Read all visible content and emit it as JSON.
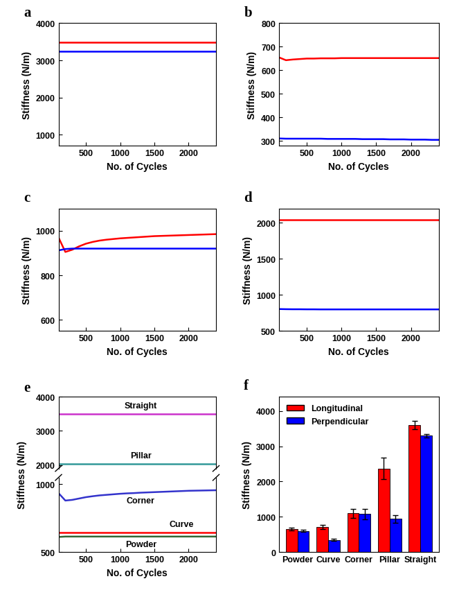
{
  "chart_data": [
    {
      "type": "line",
      "title": "a",
      "xlabel": "No. of Cycles",
      "ylabel": "Stiffness (N/m)",
      "x": [
        100,
        200,
        300,
        400,
        500,
        600,
        700,
        800,
        900,
        1000,
        1100,
        1200,
        1300,
        1400,
        1500,
        1600,
        1700,
        1800,
        1900,
        2000,
        2100,
        2200,
        2300,
        2400
      ],
      "xlim": [
        100,
        2400
      ],
      "xticks": [
        500,
        1000,
        1500,
        2000
      ],
      "ylim": [
        700,
        4000
      ],
      "yticks": [
        1000,
        2000,
        3000,
        4000
      ],
      "series": [
        {
          "color": "#ff0000",
          "values": [
            3480,
            3480,
            3480,
            3480,
            3480,
            3480,
            3480,
            3480,
            3480,
            3480,
            3480,
            3480,
            3480,
            3480,
            3480,
            3480,
            3480,
            3480,
            3480,
            3480,
            3480,
            3480,
            3480,
            3480
          ]
        },
        {
          "color": "#0000ff",
          "values": [
            3250,
            3250,
            3250,
            3250,
            3250,
            3250,
            3250,
            3250,
            3250,
            3250,
            3250,
            3250,
            3250,
            3250,
            3250,
            3250,
            3250,
            3250,
            3250,
            3250,
            3250,
            3250,
            3250,
            3250
          ]
        }
      ]
    },
    {
      "type": "line",
      "title": "b",
      "xlabel": "No. of Cycles",
      "ylabel": "Stiffness (N/m)",
      "x": [
        100,
        200,
        300,
        400,
        500,
        600,
        700,
        800,
        900,
        1000,
        1100,
        1200,
        1300,
        1400,
        1500,
        1600,
        1700,
        1800,
        1900,
        2000,
        2100,
        2200,
        2300,
        2400
      ],
      "xlim": [
        100,
        2400
      ],
      "xticks": [
        500,
        1000,
        1500,
        2000
      ],
      "ylim": [
        280,
        800
      ],
      "yticks": [
        300,
        400,
        500,
        600,
        700,
        800
      ],
      "series": [
        {
          "color": "#ff0000",
          "values": [
            655,
            643,
            646,
            648,
            650,
            650,
            651,
            651,
            651,
            652,
            652,
            652,
            652,
            652,
            652,
            652,
            652,
            652,
            652,
            652,
            652,
            652,
            652,
            652
          ]
        },
        {
          "color": "#0000ff",
          "values": [
            311,
            310,
            310,
            310,
            310,
            310,
            310,
            309,
            309,
            309,
            309,
            309,
            308,
            308,
            308,
            308,
            307,
            307,
            307,
            306,
            306,
            306,
            305,
            305
          ]
        }
      ]
    },
    {
      "type": "line",
      "title": "c",
      "xlabel": "No. of Cycles",
      "ylabel": "Stiffness (N/m)",
      "x": [
        100,
        200,
        300,
        400,
        500,
        600,
        700,
        800,
        900,
        1000,
        1100,
        1200,
        1300,
        1400,
        1500,
        1600,
        1700,
        1800,
        1900,
        2000,
        2100,
        2200,
        2300,
        2400
      ],
      "xlim": [
        100,
        2400
      ],
      "xticks": [
        500,
        1000,
        1500,
        2000
      ],
      "ylim": [
        550,
        1100
      ],
      "yticks": [
        600,
        800,
        1000
      ],
      "series": [
        {
          "color": "#ff0000",
          "values": [
            970,
            905,
            915,
            930,
            942,
            950,
            956,
            960,
            963,
            966,
            968,
            970,
            972,
            974,
            976,
            977,
            978,
            979,
            980,
            981,
            982,
            983,
            984,
            985
          ]
        },
        {
          "color": "#0000ff",
          "values": [
            912,
            918,
            920,
            920,
            920,
            920,
            920,
            920,
            920,
            920,
            920,
            920,
            920,
            920,
            920,
            920,
            920,
            920,
            920,
            920,
            920,
            920,
            920,
            920
          ]
        }
      ]
    },
    {
      "type": "line",
      "title": "d",
      "xlabel": "No. of Cycles",
      "ylabel": "Stiffness (N/m)",
      "x": [
        100,
        200,
        300,
        400,
        500,
        600,
        700,
        800,
        900,
        1000,
        1100,
        1200,
        1300,
        1400,
        1500,
        1600,
        1700,
        1800,
        1900,
        2000,
        2100,
        2200,
        2300,
        2400
      ],
      "xlim": [
        100,
        2400
      ],
      "xticks": [
        500,
        1000,
        1500,
        2000
      ],
      "ylim": [
        500,
        2200
      ],
      "yticks": [
        500,
        1000,
        1500,
        2000
      ],
      "series": [
        {
          "color": "#ff0000",
          "values": [
            2040,
            2040,
            2040,
            2040,
            2040,
            2040,
            2040,
            2040,
            2040,
            2040,
            2040,
            2040,
            2040,
            2040,
            2040,
            2040,
            2040,
            2040,
            2040,
            2040,
            2040,
            2040,
            2040,
            2040
          ]
        },
        {
          "color": "#0000ff",
          "values": [
            805,
            803,
            802,
            802,
            801,
            801,
            800,
            800,
            800,
            800,
            800,
            800,
            800,
            800,
            800,
            800,
            800,
            800,
            800,
            800,
            800,
            800,
            800,
            800
          ]
        }
      ]
    },
    {
      "type": "line",
      "title": "e",
      "ylabel": "Stiffness (N/m)",
      "tick_labels": "y",
      "x": [
        100,
        200,
        300,
        400,
        500,
        600,
        700,
        800,
        900,
        1000,
        1100,
        1200,
        1300,
        1400,
        1500,
        1600,
        1700,
        1800,
        1900,
        2000,
        2100,
        2200,
        2300,
        2400
      ],
      "xlim": [
        100,
        2400
      ],
      "xticks": [
        500,
        1000,
        1500,
        2000
      ],
      "ylim": [
        1900,
        4000
      ],
      "yticks": [
        2000,
        3000,
        4000
      ],
      "series": [
        {
          "name": "Straight",
          "color": "#cc33cc",
          "values": [
            3500,
            3500,
            3500,
            3500,
            3500,
            3500,
            3500,
            3500,
            3500,
            3500,
            3500,
            3500,
            3500,
            3500,
            3500,
            3500,
            3500,
            3500,
            3500,
            3500,
            3500,
            3500,
            3500,
            3500
          ]
        },
        {
          "name": "Pillar",
          "color": "#339999",
          "values": [
            2040,
            2040,
            2040,
            2040,
            2040,
            2040,
            2040,
            2040,
            2040,
            2040,
            2040,
            2040,
            2040,
            2040,
            2040,
            2040,
            2040,
            2040,
            2040,
            2040,
            2040,
            2040,
            2040,
            2040
          ]
        }
      ]
    },
    {
      "type": "line",
      "xlabel": "No. of Cycles",
      "x": [
        100,
        200,
        300,
        400,
        500,
        600,
        700,
        800,
        900,
        1000,
        1100,
        1200,
        1300,
        1400,
        1500,
        1600,
        1700,
        1800,
        1900,
        2000,
        2100,
        2200,
        2300,
        2400
      ],
      "xlim": [
        100,
        2400
      ],
      "xticks": [
        500,
        1000,
        1500,
        2000
      ],
      "ylim": [
        500,
        1050
      ],
      "yticks": [
        500,
        1000
      ],
      "series": [
        {
          "name": "Corner",
          "color": "#3333cc",
          "values": [
            935,
            880,
            885,
            895,
            905,
            912,
            918,
            922,
            926,
            930,
            933,
            935,
            938,
            940,
            942,
            944,
            946,
            948,
            950,
            952,
            953,
            954,
            955,
            956
          ]
        },
        {
          "name": "Curve",
          "color": "#ff0000",
          "values": [
            645,
            645,
            645,
            645,
            645,
            645,
            645,
            645,
            645,
            645,
            645,
            645,
            645,
            645,
            645,
            645,
            645,
            645,
            645,
            645,
            645,
            645,
            645,
            645
          ]
        },
        {
          "name": "Powder",
          "color": "#336633",
          "values": [
            612,
            615,
            615,
            615,
            615,
            615,
            615,
            615,
            615,
            615,
            615,
            615,
            615,
            615,
            615,
            615,
            615,
            615,
            615,
            615,
            615,
            615,
            615,
            615
          ]
        }
      ]
    },
    {
      "type": "bar",
      "title": "f",
      "ylabel": "Stiffness (N/m)",
      "legend": "upper left",
      "categories": [
        "Powder",
        "Curve",
        "Corner",
        "Pillar",
        "Straight"
      ],
      "ylim": [
        0,
        4400
      ],
      "yticks": [
        0,
        1000,
        2000,
        3000,
        4000
      ],
      "series": [
        {
          "name": "Longitudinal",
          "color": "#ff0000",
          "values": [
            660,
            720,
            1100,
            2370,
            3600
          ],
          "errors": [
            40,
            60,
            130,
            300,
            120
          ]
        },
        {
          "name": "Perpendicular",
          "color": "#0000ff",
          "values": [
            600,
            350,
            1080,
            940,
            3300
          ],
          "errors": [
            30,
            30,
            150,
            100,
            50
          ]
        }
      ]
    }
  ]
}
